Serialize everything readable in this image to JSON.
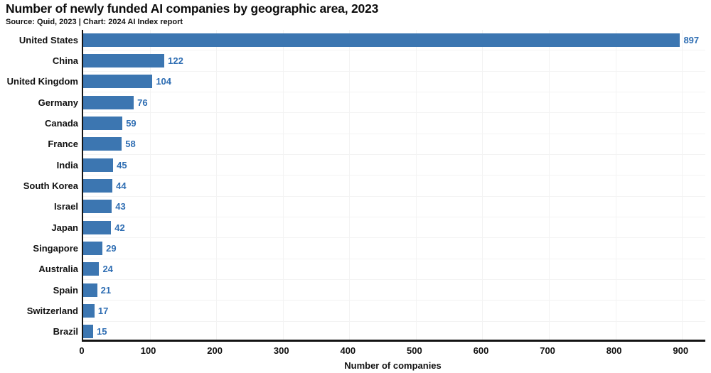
{
  "header": {
    "title": "Number of newly funded AI companies by geographic area, 2023",
    "source_line": "Source: Quid, 2023 | Chart: 2024 AI Index report"
  },
  "chart_data": {
    "type": "bar",
    "orientation": "horizontal",
    "title": "Number of newly funded AI companies by geographic area, 2023",
    "subtitle": "Source: Quid, 2023 | Chart: 2024 AI Index report",
    "categories": [
      "United States",
      "China",
      "United Kingdom",
      "Germany",
      "Canada",
      "France",
      "India",
      "South Korea",
      "Israel",
      "Japan",
      "Singapore",
      "Australia",
      "Spain",
      "Switzerland",
      "Brazil"
    ],
    "values": [
      897,
      122,
      104,
      76,
      59,
      58,
      45,
      44,
      43,
      42,
      29,
      24,
      21,
      17,
      15
    ],
    "xlabel": "Number of companies",
    "ylabel": "",
    "xticks": [
      0,
      100,
      200,
      300,
      400,
      500,
      600,
      700,
      800,
      900
    ],
    "xlim": [
      0,
      935
    ],
    "grid": true,
    "value_labels": true,
    "legend": "none",
    "colors": {
      "bar": "#3C76B1",
      "value_label": "#2F6EB3",
      "axis": "#141414",
      "gridline": "#f3f3f3",
      "text": "#111111"
    }
  }
}
